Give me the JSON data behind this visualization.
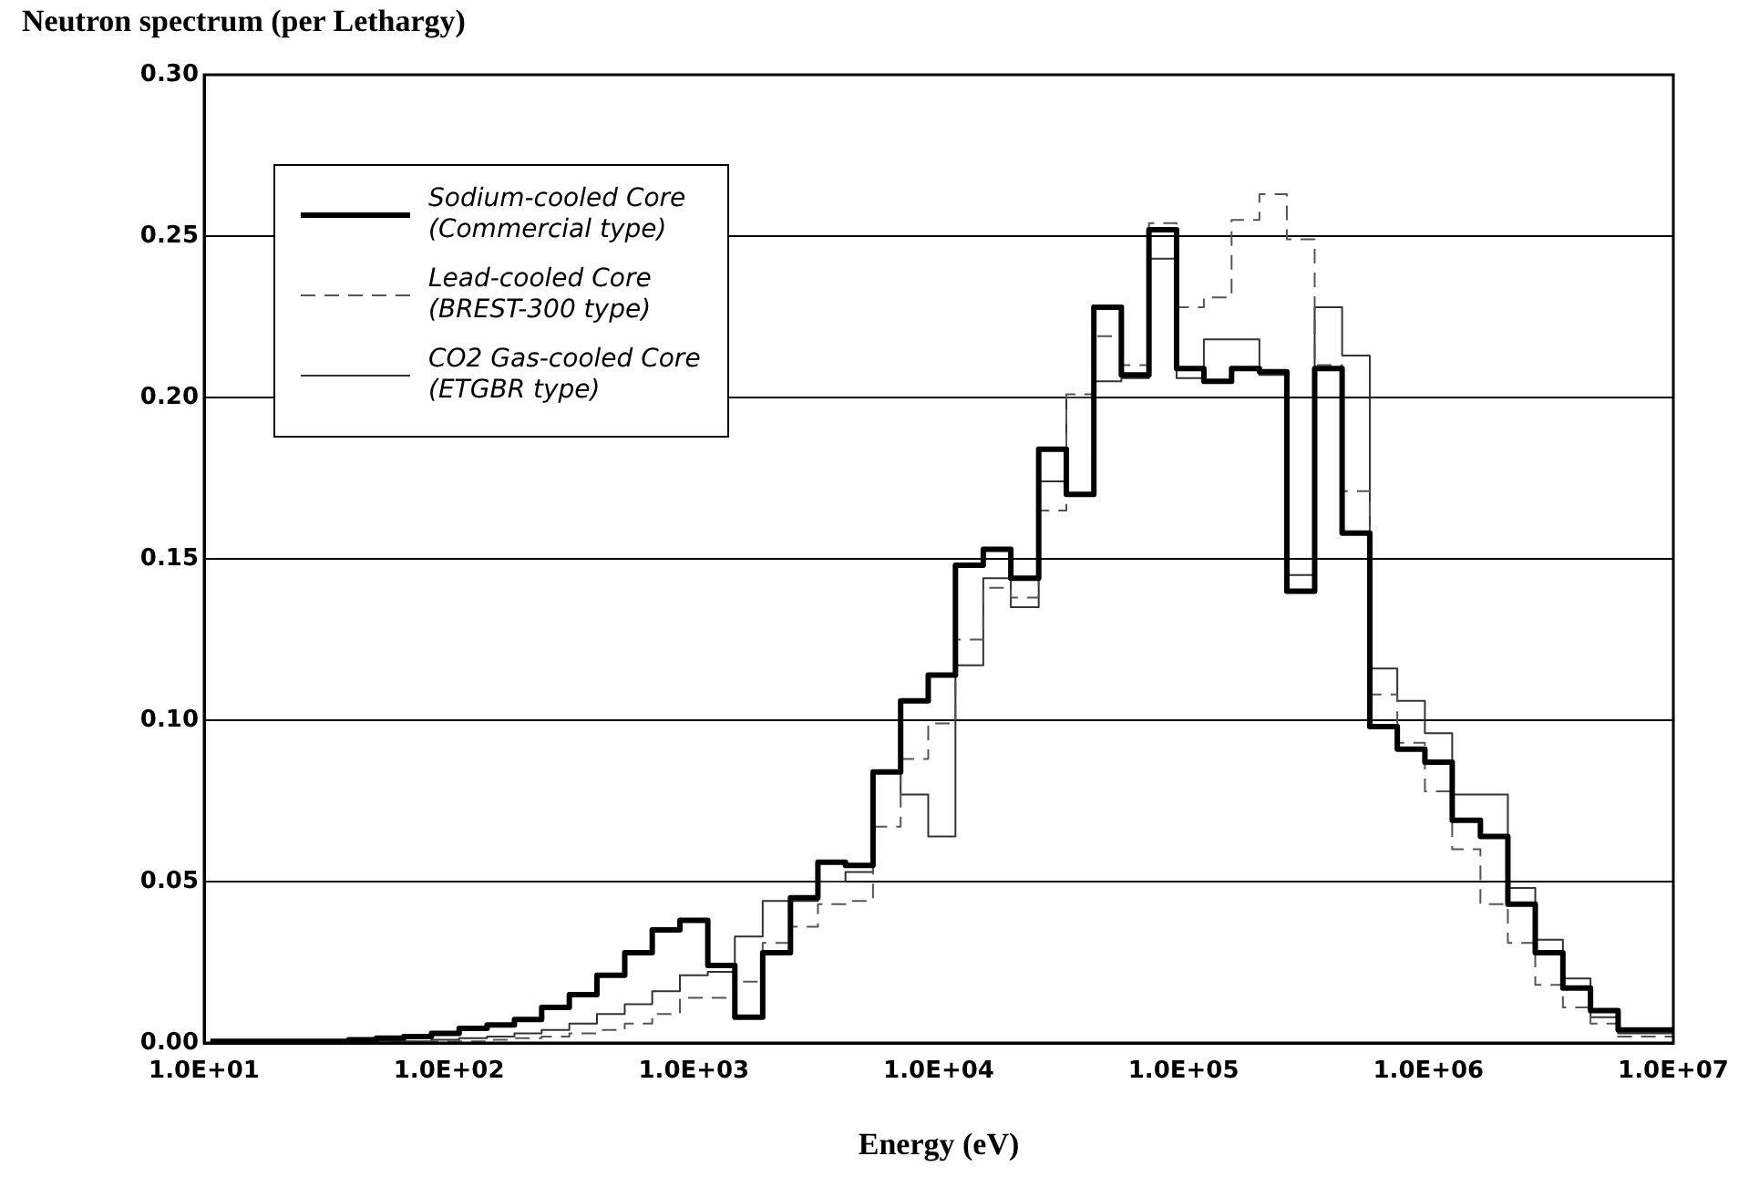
{
  "chart_data": {
    "type": "step",
    "ylabel": "Neutron spectrum (per Lethargy)",
    "xlabel": "Energy (eV)",
    "log": "x",
    "grid": "y",
    "legend": "top left",
    "marker": "none",
    "xlim": [
      10,
      10000000
    ],
    "ylim": [
      0,
      0.3
    ],
    "xticks": [
      {
        "value": 10,
        "label": "1.0E+01"
      },
      {
        "value": 100,
        "label": "1.0E+02"
      },
      {
        "value": 1000,
        "label": "1.0E+03"
      },
      {
        "value": 10000,
        "label": "1.0E+04"
      },
      {
        "value": 100000,
        "label": "1.0E+05"
      },
      {
        "value": 1000000,
        "label": "1.0E+06"
      },
      {
        "value": 10000000,
        "label": "1.0E+07"
      }
    ],
    "yticks": [
      {
        "value": 0,
        "label": "0.00"
      },
      {
        "value": 0.05,
        "label": "0.05"
      },
      {
        "value": 0.1,
        "label": "0.10"
      },
      {
        "value": 0.15,
        "label": "0.15"
      },
      {
        "value": 0.2,
        "label": "0.20"
      },
      {
        "value": 0.25,
        "label": "0.25"
      },
      {
        "value": 0.3,
        "label": "0.30"
      }
    ],
    "x": [
      10.6,
      13.8,
      17.9,
      23.2,
      30,
      38.9,
      50.5,
      65.4,
      84.8,
      110,
      143,
      185,
      239,
      310,
      402,
      522,
      676,
      877,
      1140,
      1470,
      1910,
      2480,
      3210,
      4160,
      5390,
      6990,
      9060,
      11700,
      15200,
      19700,
      25600,
      33200,
      43000,
      55700,
      72200,
      93600,
      121000,
      157000,
      204000,
      264000,
      343000,
      444000,
      576000,
      746000,
      967000,
      1250000,
      1630000,
      2110000,
      2730000,
      3540000,
      4590000,
      5950000,
      7720000,
      10000000
    ],
    "series": [
      {
        "name": "Sodium-cooled Core (Commercial type)",
        "color": "#000000",
        "line_style": "solid",
        "values": [
          0.0005,
          0.0005,
          0.0005,
          0.0005,
          0.0005,
          0.0005,
          0.001,
          0.0015,
          0.002,
          0.003,
          0.0045,
          0.0056,
          0.0073,
          0.011,
          0.015,
          0.021,
          0.028,
          0.035,
          0.038,
          0.024,
          0.008,
          0.028,
          0.045,
          0.056,
          0.055,
          0.084,
          0.106,
          0.114,
          0.148,
          0.153,
          0.144,
          0.184,
          0.17,
          0.228,
          0.207,
          0.252,
          0.209,
          0.205,
          0.209,
          0.208,
          0.14,
          0.209,
          0.158,
          0.098,
          0.091,
          0.087,
          0.069,
          0.064,
          0.043,
          0.028,
          0.017,
          0.01,
          0.004,
          0.004
        ]
      },
      {
        "name": "Lead-cooled Core (BREST-300 type)",
        "color": "#555555",
        "line_style": "dashed",
        "values": [
          0.0005,
          0.0005,
          0.0005,
          0.0005,
          0.0005,
          0.0005,
          0.0005,
          0.0005,
          0.0005,
          0.0005,
          0.0005,
          0.001,
          0.0015,
          0.002,
          0.003,
          0.004,
          0.006,
          0.009,
          0.014,
          0.014,
          0.019,
          0.031,
          0.036,
          0.043,
          0.044,
          0.067,
          0.088,
          0.099,
          0.125,
          0.141,
          0.138,
          0.165,
          0.201,
          0.219,
          0.21,
          0.254,
          0.228,
          0.231,
          0.255,
          0.263,
          0.249,
          0.21,
          0.171,
          0.108,
          0.093,
          0.078,
          0.06,
          0.043,
          0.031,
          0.018,
          0.011,
          0.006,
          0.002,
          0.002
        ]
      },
      {
        "name": "CO2 Gas-cooled Core (ETGBR type)",
        "color": "#333333",
        "line_style": "solid",
        "values": [
          0.0005,
          0.0005,
          0.0005,
          0.0005,
          0.0005,
          0.0005,
          0.0005,
          0.0005,
          0.0005,
          0.001,
          0.0015,
          0.002,
          0.003,
          0.004,
          0.006,
          0.009,
          0.012,
          0.016,
          0.021,
          0.022,
          0.033,
          0.044,
          0.044,
          0.05,
          0.053,
          0.084,
          0.077,
          0.064,
          0.117,
          0.144,
          0.135,
          0.174,
          0.2,
          0.205,
          0.206,
          0.243,
          0.206,
          0.218,
          0.218,
          0.207,
          0.145,
          0.228,
          0.213,
          0.116,
          0.106,
          0.096,
          0.077,
          0.077,
          0.048,
          0.032,
          0.02,
          0.008,
          0.003,
          0.003
        ]
      }
    ]
  }
}
